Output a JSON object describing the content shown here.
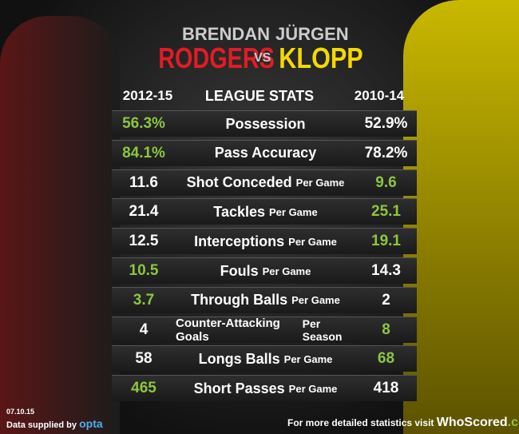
{
  "header": {
    "left_first": "BRENDAN",
    "left_last": "RODGERS",
    "vs": "VS",
    "right_first": "JÜRGEN",
    "right_last": "KLOPP",
    "left_period": "2012-15",
    "title": "LEAGUE STATS",
    "right_period": "2010-14"
  },
  "highlight_color": "#8dc63f",
  "table": {
    "rows": [
      {
        "left": "56.3%",
        "stat": "Possession",
        "suffix": "",
        "right": "52.9%",
        "better": "left"
      },
      {
        "left": "84.1%",
        "stat": "Pass Accuracy",
        "suffix": "",
        "right": "78.2%",
        "better": "left"
      },
      {
        "left": "11.6",
        "stat": "Shot Conceded",
        "suffix": "Per Game",
        "right": "9.6",
        "better": "right"
      },
      {
        "left": "21.4",
        "stat": "Tackles",
        "suffix": "Per Game",
        "right": "25.1",
        "better": "right"
      },
      {
        "left": "12.5",
        "stat": "Interceptions",
        "suffix": "Per Game",
        "right": "19.1",
        "better": "right"
      },
      {
        "left": "10.5",
        "stat": "Fouls",
        "suffix": "Per Game",
        "right": "14.3",
        "better": "left"
      },
      {
        "left": "3.7",
        "stat": "Through Balls",
        "suffix": "Per Game",
        "right": "2",
        "better": "left"
      },
      {
        "left": "4",
        "stat": "Counter-Attacking Goals",
        "suffix": "Per Season",
        "right": "8",
        "better": "right"
      },
      {
        "left": "58",
        "stat": "Longs Balls",
        "suffix": "Per Game",
        "right": "68",
        "better": "right"
      },
      {
        "left": "465",
        "stat": "Short Passes",
        "suffix": "Per Game",
        "right": "418",
        "better": "left"
      }
    ]
  },
  "footer": {
    "date": "07.10.15",
    "supplier": "Data supplied by",
    "brand": "opta",
    "cta": "For more detailed statistics visit",
    "site": "WhoScored",
    ".com": ".com"
  }
}
